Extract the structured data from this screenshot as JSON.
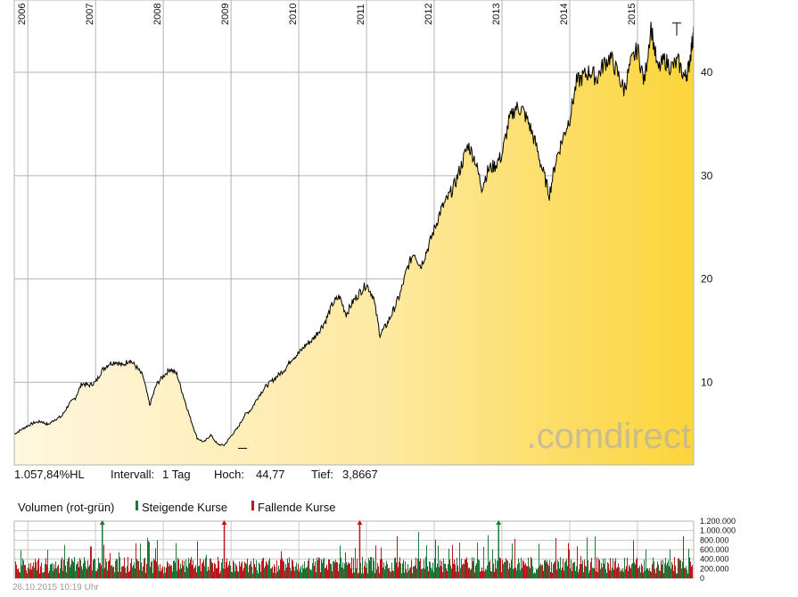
{
  "stats": {
    "change": "1.057,84%HL",
    "interval_label": "Intervall:",
    "interval_value": "1 Tag",
    "high_label": "Hoch:",
    "high_value": "44,77",
    "low_label": "Tief:",
    "low_value": "3,8667"
  },
  "volume_legend": {
    "title": "Volumen (rot-grün)",
    "rising": "Steigende Kurse",
    "falling": "Fallende Kurse"
  },
  "timestamp": "26.10.2015 10:19 Uhr",
  "watermark": ".comdirect",
  "colors": {
    "line": "#000000",
    "area_light": "#fff5d8",
    "area_dark": "#fdd63c",
    "grid": "#b3b3b3",
    "rising": "#1a7a3a",
    "falling": "#c0141c"
  },
  "chart_data": [
    {
      "type": "area",
      "title": "",
      "x_tick_labels": [
        "2006",
        "2007",
        "2008",
        "2009",
        "2010",
        "2011",
        "2012",
        "2013",
        "2014",
        "2015"
      ],
      "y_tick_labels": [
        "10",
        "20",
        "30",
        "40"
      ],
      "y_ticks": [
        10,
        20,
        30,
        40
      ],
      "ylim": [
        2,
        47
      ],
      "xlim": [
        2005.8,
        2015.83
      ],
      "grid": true,
      "series": [
        {
          "x": [
            2005.8,
            2005.9,
            2006.0,
            2006.1,
            2006.2,
            2006.3,
            2006.4,
            2006.5,
            2006.6,
            2006.7,
            2006.8,
            2006.9,
            2007.0,
            2007.1,
            2007.2,
            2007.3,
            2007.4,
            2007.5,
            2007.6,
            2007.7,
            2007.8,
            2007.9,
            2008.0,
            2008.1,
            2008.2,
            2008.3,
            2008.4,
            2008.5,
            2008.6,
            2008.7,
            2008.8,
            2008.9,
            2009.0,
            2009.1,
            2009.2,
            2009.3,
            2009.4,
            2009.5,
            2009.6,
            2009.7,
            2009.8,
            2009.9,
            2010.0,
            2010.1,
            2010.2,
            2010.3,
            2010.4,
            2010.5,
            2010.6,
            2010.7,
            2010.8,
            2010.9,
            2011.0,
            2011.1,
            2011.2,
            2011.3,
            2011.4,
            2011.5,
            2011.6,
            2011.7,
            2011.8,
            2011.9,
            2012.0,
            2012.1,
            2012.2,
            2012.3,
            2012.4,
            2012.5,
            2012.6,
            2012.7,
            2012.8,
            2012.9,
            2013.0,
            2013.1,
            2013.2,
            2013.3,
            2013.4,
            2013.5,
            2013.6,
            2013.7,
            2013.8,
            2013.9,
            2014.0,
            2014.1,
            2014.2,
            2014.3,
            2014.4,
            2014.5,
            2014.6,
            2014.7,
            2014.8,
            2014.9,
            2015.0,
            2015.1,
            2015.2,
            2015.3,
            2015.4,
            2015.5,
            2015.6,
            2015.7,
            2015.75,
            2015.8,
            2015.83
          ],
          "y": [
            5.0,
            5.4,
            5.8,
            6.1,
            6.2,
            5.9,
            6.4,
            6.7,
            7.8,
            8.5,
            9.9,
            9.7,
            10.0,
            11.2,
            11.8,
            12.0,
            11.6,
            12.2,
            11.5,
            10.6,
            7.8,
            9.8,
            10.6,
            11.3,
            10.8,
            8.6,
            6.5,
            4.6,
            4.2,
            4.9,
            4.0,
            3.9,
            4.8,
            5.6,
            6.8,
            7.4,
            8.6,
            9.5,
            10.1,
            10.7,
            11.3,
            12.3,
            12.8,
            13.6,
            14.1,
            15.0,
            16.0,
            17.6,
            18.3,
            16.6,
            17.8,
            18.7,
            19.5,
            18.3,
            14.6,
            15.6,
            17.0,
            18.6,
            21.0,
            22.6,
            21.2,
            22.9,
            24.8,
            26.7,
            27.8,
            29.1,
            31.0,
            33.0,
            31.6,
            28.9,
            30.6,
            31.0,
            32.0,
            35.2,
            36.6,
            36.4,
            35.0,
            33.0,
            30.5,
            28.2,
            31.6,
            33.7,
            35.6,
            39.0,
            39.6,
            40.1,
            39.4,
            40.8,
            41.5,
            40.0,
            38.3,
            40.8,
            42.3,
            39.0,
            44.5,
            40.2,
            41.2,
            40.5,
            41.0,
            39.5,
            40.3,
            42.5,
            44.0
          ]
        }
      ],
      "high_marker": 44.77,
      "low_marker": 3.8667
    },
    {
      "type": "bar",
      "title": "Volumen (rot-grün)",
      "y_tick_labels": [
        "1.200.000",
        "1.000.000",
        "800.000",
        "600.000",
        "400.000",
        "200.000",
        "0"
      ],
      "y_ticks": [
        1200000,
        1000000,
        800000,
        600000,
        400000,
        200000,
        0
      ],
      "ylim": [
        0,
        1200000
      ],
      "series": [
        {
          "name": "Steigende Kurse",
          "spikes_x": [
            2007.1,
            2012.95
          ]
        },
        {
          "name": "Fallende Kurse",
          "spikes_x": [
            2008.9,
            2010.9
          ]
        }
      ],
      "typical_range": [
        100000,
        450000
      ],
      "peak_values": [
        900000,
        1150000,
        1000000,
        850000,
        700000
      ]
    }
  ]
}
